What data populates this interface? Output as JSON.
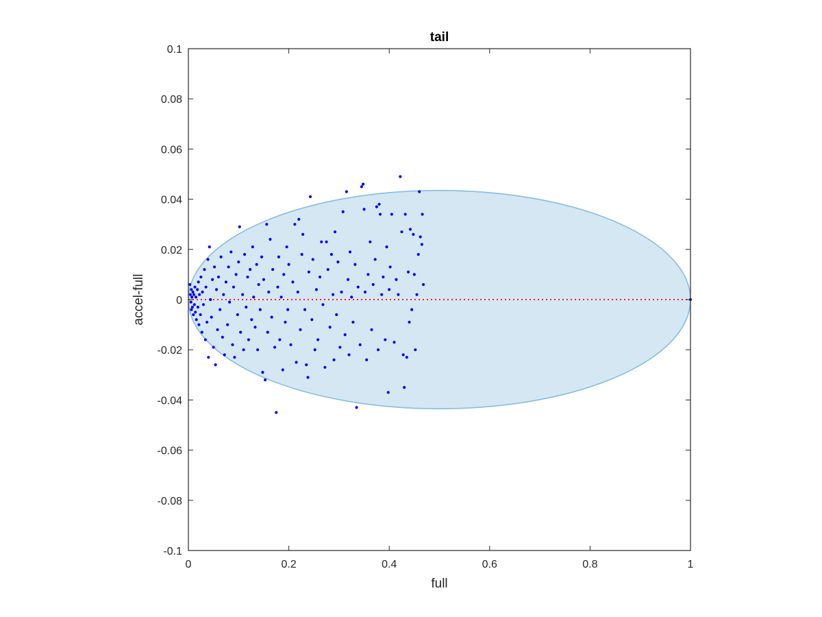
{
  "chart_data": {
    "type": "scatter",
    "title": "tail",
    "xlabel": "full",
    "ylabel": "accel-full",
    "xlim": [
      0,
      1
    ],
    "ylim": [
      -0.1,
      0.1
    ],
    "xticks": [
      0,
      0.2,
      0.4,
      0.6,
      0.8,
      1
    ],
    "xtick_labels": [
      "0",
      "0.2",
      "0.4",
      "0.6",
      "0.8",
      "1"
    ],
    "yticks": [
      -0.1,
      -0.08,
      -0.06,
      -0.04,
      -0.02,
      0,
      0.02,
      0.04,
      0.06,
      0.08,
      0.1
    ],
    "ytick_labels": [
      "-0.1",
      "-0.08",
      "-0.06",
      "-0.04",
      "-0.02",
      "0",
      "0.02",
      "0.04",
      "0.06",
      "0.08",
      "0.1"
    ],
    "grid": false,
    "colors": {
      "points": "#0000ff",
      "ellipse_fill": "#d5e7f3",
      "ellipse_edge": "#85bde0",
      "reference_line": "#ff0000",
      "axes": "#262626"
    },
    "ellipse": {
      "center": [
        0.5,
        0
      ],
      "semi_axes": [
        0.5,
        0.0435
      ]
    },
    "reference_line": {
      "y": 0,
      "x_range": [
        0,
        1
      ],
      "style": "dotted"
    },
    "points": [
      [
        0.003,
        0.006
      ],
      [
        0.004,
        0.002
      ],
      [
        0.005,
        -0.001
      ],
      [
        0.006,
        0.004
      ],
      [
        0.006,
        -0.004
      ],
      [
        0.007,
        0.001
      ],
      [
        0.008,
        -0.003
      ],
      [
        0.009,
        0.003
      ],
      [
        0.01,
        -0.006
      ],
      [
        0.011,
        0.002
      ],
      [
        0.012,
        -0.002
      ],
      [
        0.013,
        0.005
      ],
      [
        0.014,
        -0.005
      ],
      [
        0.015,
        0.001
      ],
      [
        0.016,
        -0.008
      ],
      [
        0.018,
        0.004
      ],
      [
        0.019,
        -0.003
      ],
      [
        0.02,
        0.007
      ],
      [
        0.021,
        -0.01
      ],
      [
        0.022,
        0.002
      ],
      [
        0.024,
        -0.006
      ],
      [
        0.025,
        0.009
      ],
      [
        0.027,
        -0.013
      ],
      [
        0.028,
        0.003
      ],
      [
        0.03,
        -0.002
      ],
      [
        0.032,
        0.012
      ],
      [
        0.034,
        -0.016
      ],
      [
        0.035,
        0.005
      ],
      [
        0.037,
        -0.009
      ],
      [
        0.039,
        0.016
      ],
      [
        0.04,
        -0.023
      ],
      [
        0.042,
        0.021
      ],
      [
        0.044,
        0.0
      ],
      [
        0.046,
        -0.007
      ],
      [
        0.048,
        0.008
      ],
      [
        0.05,
        -0.019
      ],
      [
        0.052,
        0.013
      ],
      [
        0.054,
        -0.026
      ],
      [
        0.056,
        0.004
      ],
      [
        0.058,
        -0.012
      ],
      [
        0.06,
        0.009
      ],
      [
        0.063,
        -0.004
      ],
      [
        0.065,
        0.017
      ],
      [
        0.068,
        -0.015
      ],
      [
        0.07,
        0.002
      ],
      [
        0.072,
        -0.022
      ],
      [
        0.075,
        0.007
      ],
      [
        0.078,
        -0.01
      ],
      [
        0.08,
        0.013
      ],
      [
        0.082,
        -0.001
      ],
      [
        0.085,
        0.019
      ],
      [
        0.088,
        -0.018
      ],
      [
        0.09,
        0.005
      ],
      [
        0.092,
        -0.023
      ],
      [
        0.095,
        0.01
      ],
      [
        0.098,
        -0.006
      ],
      [
        0.1,
        0.015
      ],
      [
        0.102,
        0.029
      ],
      [
        0.104,
        -0.013
      ],
      [
        0.108,
        0.002
      ],
      [
        0.11,
        -0.02
      ],
      [
        0.112,
        0.018
      ],
      [
        0.115,
        -0.003
      ],
      [
        0.118,
        0.009
      ],
      [
        0.12,
        -0.016
      ],
      [
        0.123,
        0.012
      ],
      [
        0.126,
        -0.008
      ],
      [
        0.128,
        0.021
      ],
      [
        0.13,
        0.001
      ],
      [
        0.133,
        -0.011
      ],
      [
        0.136,
        0.014
      ],
      [
        0.138,
        -0.02
      ],
      [
        0.14,
        0.006
      ],
      [
        0.143,
        -0.004
      ],
      [
        0.146,
        0.017
      ],
      [
        0.148,
        -0.029
      ],
      [
        0.15,
        0.008
      ],
      [
        0.153,
        -0.032
      ],
      [
        0.156,
        0.03
      ],
      [
        0.158,
        -0.013
      ],
      [
        0.16,
        0.003
      ],
      [
        0.163,
        0.024
      ],
      [
        0.166,
        -0.007
      ],
      [
        0.168,
        0.012
      ],
      [
        0.172,
        -0.019
      ],
      [
        0.175,
        -0.045
      ],
      [
        0.178,
        0.005
      ],
      [
        0.18,
        0.017
      ],
      [
        0.182,
        -0.016
      ],
      [
        0.185,
        0.001
      ],
      [
        0.188,
        -0.028
      ],
      [
        0.19,
        0.01
      ],
      [
        0.193,
        -0.009
      ],
      [
        0.196,
        0.021
      ],
      [
        0.198,
        -0.004
      ],
      [
        0.2,
        0.014
      ],
      [
        0.204,
        -0.018
      ],
      [
        0.208,
        0.007
      ],
      [
        0.212,
        0.03
      ],
      [
        0.215,
        -0.025
      ],
      [
        0.218,
        0.003
      ],
      [
        0.22,
        0.032
      ],
      [
        0.223,
        -0.012
      ],
      [
        0.226,
        0.018
      ],
      [
        0.228,
        0.026
      ],
      [
        0.232,
        -0.004
      ],
      [
        0.235,
        -0.026
      ],
      [
        0.238,
        -0.031
      ],
      [
        0.24,
        0.011
      ],
      [
        0.243,
        0.041
      ],
      [
        0.246,
        -0.008
      ],
      [
        0.248,
        0.016
      ],
      [
        0.252,
        -0.02
      ],
      [
        0.255,
        0.004
      ],
      [
        0.258,
        -0.016
      ],
      [
        0.262,
        0.009
      ],
      [
        0.265,
        0.023
      ],
      [
        0.268,
        -0.002
      ],
      [
        0.272,
        -0.027
      ],
      [
        0.275,
        0.023
      ],
      [
        0.278,
        0.012
      ],
      [
        0.282,
        -0.011
      ],
      [
        0.285,
        0.018
      ],
      [
        0.288,
        0.002
      ],
      [
        0.29,
        -0.024
      ],
      [
        0.292,
        0.027
      ],
      [
        0.295,
        -0.006
      ],
      [
        0.298,
        0.015
      ],
      [
        0.302,
        -0.019
      ],
      [
        0.305,
        0.003
      ],
      [
        0.308,
        0.035
      ],
      [
        0.312,
        -0.014
      ],
      [
        0.315,
        0.043
      ],
      [
        0.318,
        0.008
      ],
      [
        0.32,
        -0.022
      ],
      [
        0.322,
        0.019
      ],
      [
        0.325,
        0.001
      ],
      [
        0.328,
        -0.009
      ],
      [
        0.332,
        0.014
      ],
      [
        0.335,
        -0.043
      ],
      [
        0.338,
        0.005
      ],
      [
        0.342,
        -0.018
      ],
      [
        0.345,
        0.045
      ],
      [
        0.348,
        0.046
      ],
      [
        0.35,
        0.036
      ],
      [
        0.352,
        0.003
      ],
      [
        0.355,
        -0.024
      ],
      [
        0.358,
        0.01
      ],
      [
        0.362,
        0.023
      ],
      [
        0.365,
        -0.012
      ],
      [
        0.368,
        0.006
      ],
      [
        0.372,
        0.016
      ],
      [
        0.375,
        0.037
      ],
      [
        0.378,
        -0.02
      ],
      [
        0.38,
        0.038
      ],
      [
        0.382,
        0.034
      ],
      [
        0.385,
        0.002
      ],
      [
        0.388,
        0.009
      ],
      [
        0.392,
        -0.016
      ],
      [
        0.395,
        0.021
      ],
      [
        0.398,
        -0.037
      ],
      [
        0.4,
        0.004
      ],
      [
        0.402,
        0.013
      ],
      [
        0.405,
        0.034
      ],
      [
        0.41,
        -0.017
      ],
      [
        0.414,
        0.008
      ],
      [
        0.418,
        0.002
      ],
      [
        0.422,
        0.049
      ],
      [
        0.425,
        0.027
      ],
      [
        0.428,
        -0.022
      ],
      [
        0.43,
        -0.035
      ],
      [
        0.432,
        0.034
      ],
      [
        0.435,
        -0.023
      ],
      [
        0.438,
        0.011
      ],
      [
        0.44,
        -0.009
      ],
      [
        0.442,
        0.028
      ],
      [
        0.445,
        -0.004
      ],
      [
        0.448,
        0.026
      ],
      [
        0.45,
        0.01
      ],
      [
        0.452,
        -0.02
      ],
      [
        0.455,
        0.002
      ],
      [
        0.458,
        0.018
      ],
      [
        0.46,
        0.043
      ],
      [
        0.462,
        0.025
      ],
      [
        0.465,
        0.022
      ],
      [
        0.466,
        0.034
      ],
      [
        0.468,
        0.006
      ],
      [
        1.0,
        0.0
      ]
    ]
  }
}
